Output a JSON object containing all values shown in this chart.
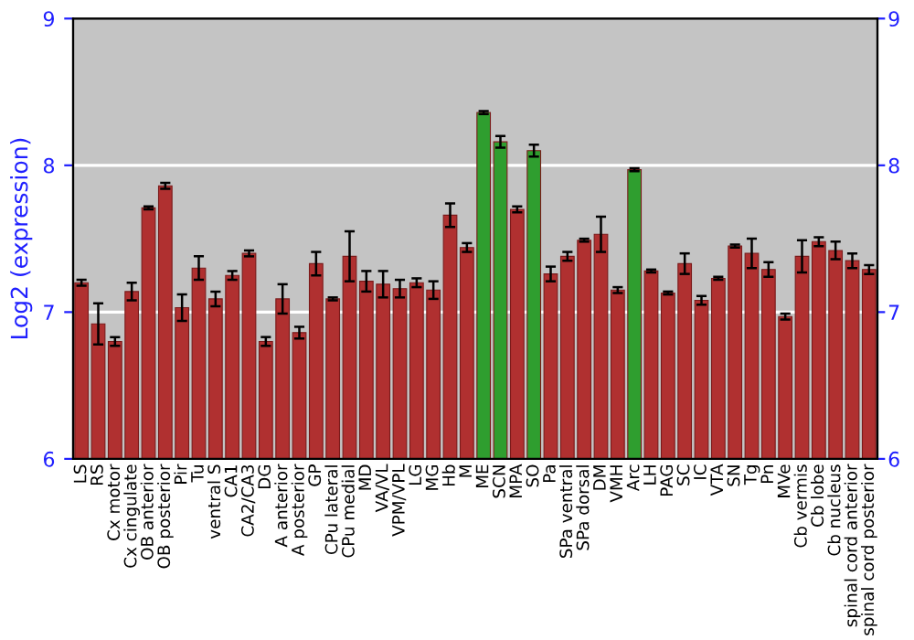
{
  "chart_data": {
    "type": "bar",
    "ylabel": "Log2 (expression)",
    "categories": [
      "LS",
      "RS",
      "Cx motor",
      "Cx cingulate",
      "OB anterior",
      "OB posterior",
      "Pir",
      "Tu",
      "ventral S",
      "CA1",
      "CA2/CA3",
      "DG",
      "A anterior",
      "A posterior",
      "GP",
      "CPu lateral",
      "CPu medial",
      "MD",
      "VA/VL",
      "VPM/VPL",
      "LG",
      "MG",
      "Hb",
      "M",
      "ME",
      "SCN",
      "MPA",
      "SO",
      "Pa",
      "SPa ventral",
      "SPa dorsal",
      "DM",
      "VMH",
      "Arc",
      "LH",
      "PAG",
      "SC",
      "IC",
      "VTA",
      "SN",
      "Tg",
      "Pn",
      "MVe",
      "Cb vermis",
      "Cb lobe",
      "Cb nucleus",
      "spinal cord anterior",
      "spinal cord posterior"
    ],
    "values": [
      7.2,
      6.92,
      6.8,
      7.14,
      7.71,
      7.86,
      7.03,
      7.3,
      7.09,
      7.25,
      7.4,
      6.8,
      7.09,
      6.86,
      7.33,
      7.09,
      7.38,
      7.21,
      7.19,
      7.16,
      7.2,
      7.15,
      7.66,
      7.44,
      8.36,
      8.16,
      7.7,
      8.1,
      7.26,
      7.38,
      7.49,
      7.53,
      7.15,
      7.97,
      7.28,
      7.13,
      7.33,
      7.08,
      7.23,
      7.45,
      7.4,
      7.29,
      6.97,
      7.38,
      7.48,
      7.42,
      7.35,
      7.29
    ],
    "errors": [
      0.02,
      0.14,
      0.03,
      0.06,
      0.01,
      0.02,
      0.09,
      0.08,
      0.05,
      0.03,
      0.02,
      0.03,
      0.1,
      0.04,
      0.08,
      0.01,
      0.17,
      0.07,
      0.09,
      0.06,
      0.03,
      0.06,
      0.08,
      0.03,
      0.01,
      0.04,
      0.02,
      0.04,
      0.05,
      0.03,
      0.01,
      0.12,
      0.02,
      0.01,
      0.01,
      0.01,
      0.07,
      0.03,
      0.01,
      0.01,
      0.1,
      0.05,
      0.02,
      0.11,
      0.03,
      0.06,
      0.05,
      0.03
    ],
    "colors": [
      "#b03030",
      "#b03030",
      "#b03030",
      "#b03030",
      "#b03030",
      "#b03030",
      "#b03030",
      "#b03030",
      "#b03030",
      "#b03030",
      "#b03030",
      "#b03030",
      "#b03030",
      "#b03030",
      "#b03030",
      "#b03030",
      "#b03030",
      "#b03030",
      "#b03030",
      "#b03030",
      "#b03030",
      "#b03030",
      "#b03030",
      "#b03030",
      "#2f9e2f",
      "#2f9e2f",
      "#b03030",
      "#2f9e2f",
      "#b03030",
      "#b03030",
      "#b03030",
      "#b03030",
      "#b03030",
      "#2f9e2f",
      "#b03030",
      "#b03030",
      "#b03030",
      "#b03030",
      "#b03030",
      "#b03030",
      "#b03030",
      "#b03030",
      "#b03030",
      "#b03030",
      "#b03030",
      "#b03030",
      "#b03030",
      "#b03030"
    ],
    "ylim": [
      6,
      9
    ],
    "yticks": [
      6,
      7,
      8,
      9
    ],
    "y2lim": [
      6,
      9
    ],
    "y2ticks": [
      6,
      7,
      8,
      9
    ],
    "grid": "y"
  }
}
